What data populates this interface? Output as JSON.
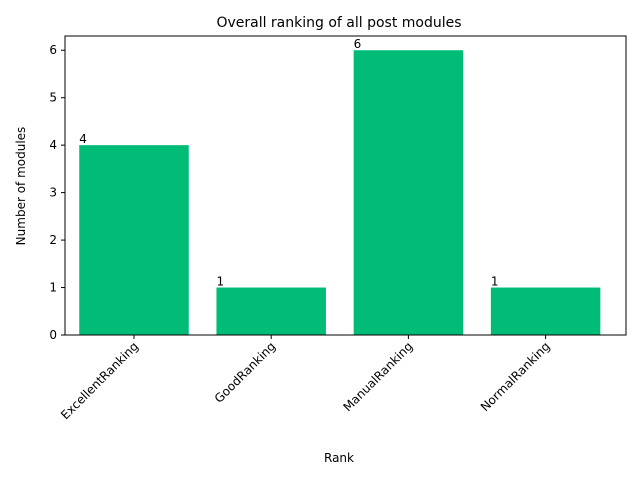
{
  "chart_data": {
    "type": "bar",
    "title": "Overall ranking of all post modules",
    "xlabel": "Rank",
    "ylabel": "Number of modules",
    "categories": [
      "ExcellentRanking",
      "GoodRanking",
      "ManualRanking",
      "NormalRanking"
    ],
    "values": [
      4,
      1,
      6,
      1
    ],
    "data_labels": [
      "4",
      "1",
      "6",
      "1"
    ],
    "ylim": [
      0,
      6.3
    ],
    "yticks": [
      0,
      1,
      2,
      3,
      4,
      5,
      6
    ],
    "bar_color": "#00bc77",
    "x_tick_rotation_deg": 45,
    "grid": false,
    "legend": "none"
  }
}
